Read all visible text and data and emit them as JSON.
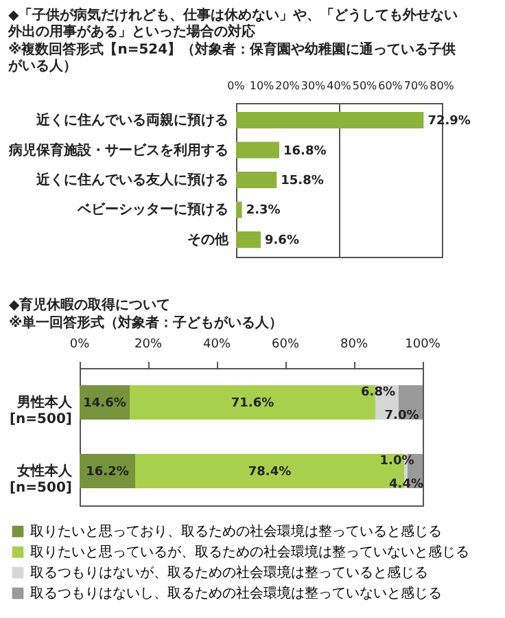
{
  "chart_data": [
    {
      "type": "bar",
      "orientation": "horizontal",
      "title": "◆「子供が病気だけれども、仕事は休めない」や、「どうしても外せない外出の用事がある」といった場合の対応",
      "subtitle": "※複数回答形式【n=524】（対象者：保育園や幼稚園に通っている子供がいる人）",
      "categories": [
        "近くに住んでいる両親に預ける",
        "病児保育施設・サービスを利用する",
        "近くに住んでいる友人に預ける",
        "ベビーシッターに預ける",
        "その他"
      ],
      "values": [
        72.9,
        16.8,
        15.8,
        2.3,
        9.6
      ],
      "value_labels": [
        "72.9%",
        "16.8%",
        "15.8%",
        "2.3%",
        "9.6%"
      ],
      "color": "#8cb43a",
      "xlim": [
        0,
        80
      ],
      "xticks": [
        {
          "value": 0,
          "label": "0%"
        },
        {
          "value": 10,
          "label": "10%"
        },
        {
          "value": 20,
          "label": "20%"
        },
        {
          "value": 30,
          "label": "30%"
        },
        {
          "value": 40,
          "label": "40%"
        },
        {
          "value": 50,
          "label": "50%"
        },
        {
          "value": 60,
          "label": "60%"
        },
        {
          "value": 70,
          "label": "70%"
        },
        {
          "value": 80,
          "label": "80%"
        }
      ],
      "grid": "x"
    },
    {
      "type": "bar",
      "orientation": "horizontal",
      "stacked": true,
      "title": "◆育児休暇の取得について",
      "subtitle": "※単一回答形式（対象者：子どもがいる人）",
      "categories": [
        "男性本人\n[n=500]",
        "女性本人\n[n=500]"
      ],
      "series": [
        {
          "name": "取りたいと思っており、取るための社会環境は整っていると感じる",
          "color": "#77933c",
          "values": [
            14.6,
            16.2
          ],
          "value_labels": [
            "14.6%",
            "16.2%"
          ]
        },
        {
          "name": "取りたいと思っているが、取るための社会環境は整っていないと感じる",
          "color": "#a9d04c",
          "values": [
            71.6,
            78.4
          ],
          "value_labels": [
            "71.6%",
            "78.4%"
          ]
        },
        {
          "name": "取るつもりはないが、取るための社会環境は整っていると感じる",
          "color": "#d6d6d6",
          "values": [
            6.8,
            1.0
          ],
          "value_labels": [
            "6.8%",
            "1.0%"
          ]
        },
        {
          "name": "取るつもりはないし、取るための社会環境は整っていないと感じる",
          "color": "#9a9a9a",
          "values": [
            7.0,
            4.4
          ],
          "value_labels": [
            "7.0%",
            "4.4%"
          ]
        }
      ],
      "xlim": [
        0,
        100
      ],
      "xticks": [
        {
          "value": 0,
          "label": "0%"
        },
        {
          "value": 20,
          "label": "20%"
        },
        {
          "value": 40,
          "label": "40%"
        },
        {
          "value": 60,
          "label": "60%"
        },
        {
          "value": 80,
          "label": "80%"
        },
        {
          "value": 100,
          "label": "100%"
        }
      ],
      "legend": "bottom"
    }
  ]
}
